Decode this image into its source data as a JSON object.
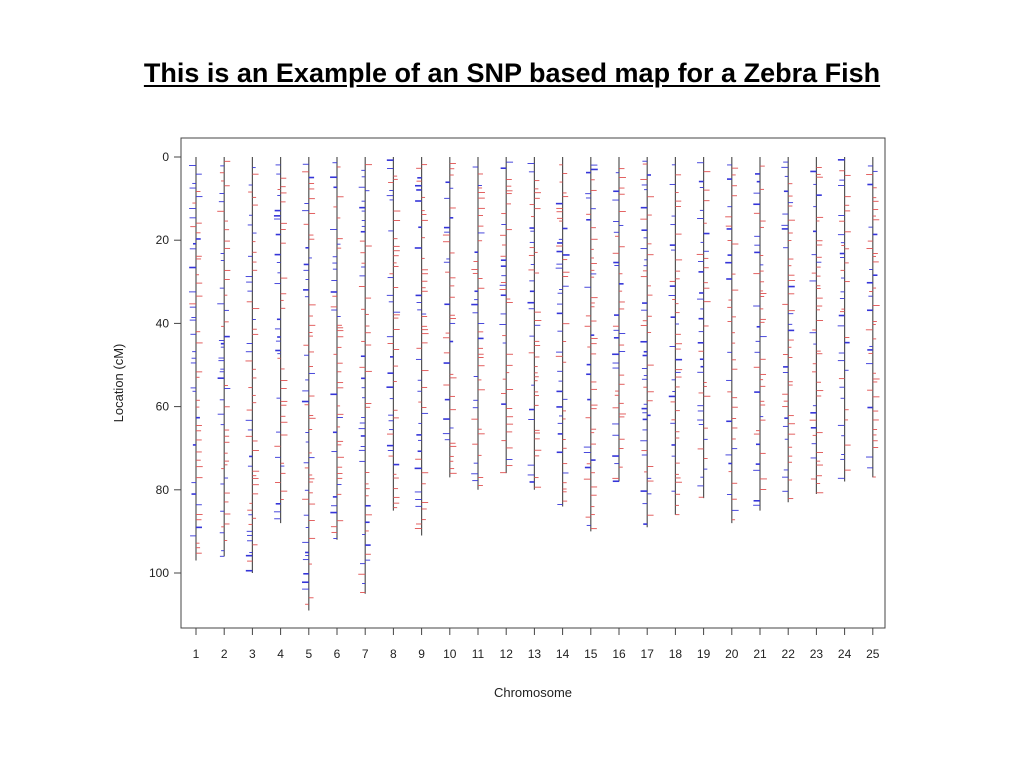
{
  "slide": {
    "title": "This is an Example of an SNP based map for a Zebra Fish"
  },
  "colors": {
    "axis": "#444444",
    "backbone": "#555555",
    "marker_red": "#e05050",
    "marker_blue": "#3535d8"
  },
  "chart_data": {
    "type": "other",
    "xlabel": "Chromosome",
    "ylabel": "Location (cM)",
    "ylim": [
      0,
      113
    ],
    "y_reversed": true,
    "y_ticks": [
      0,
      20,
      40,
      60,
      80,
      100
    ],
    "grid": false,
    "chromosomes": [
      "1",
      "2",
      "3",
      "4",
      "5",
      "6",
      "7",
      "8",
      "9",
      "10",
      "11",
      "12",
      "13",
      "14",
      "15",
      "16",
      "17",
      "18",
      "19",
      "20",
      "21",
      "22",
      "23",
      "24",
      "25"
    ],
    "chromosome_lengths_cM": [
      97,
      96,
      100,
      88,
      109,
      92,
      105,
      85,
      91,
      77,
      80,
      76,
      80,
      84,
      90,
      78,
      89,
      86,
      82,
      88,
      85,
      83,
      81,
      78,
      77
    ],
    "marker_classes": [
      "red",
      "blue"
    ],
    "markers_note": "Each horizontal tick marks one SNP position along a chromosome"
  }
}
